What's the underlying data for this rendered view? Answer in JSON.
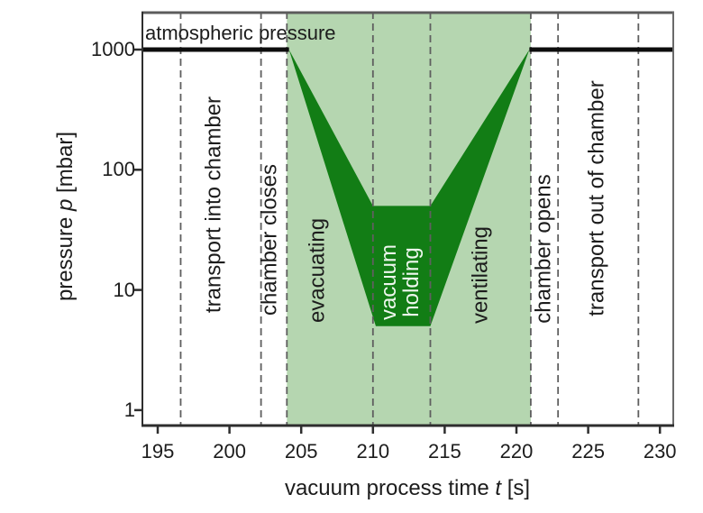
{
  "chart_data": {
    "type": "area",
    "title": "",
    "annotation": "atmospheric pressure",
    "xlabel": {
      "pre": "vacuum process time ",
      "var": "t",
      "post": " [s]"
    },
    "ylabel": {
      "pre": "pressure ",
      "var": "p",
      "post": " [mbar]"
    },
    "x_ticks": [
      195,
      200,
      205,
      210,
      215,
      220,
      225,
      230
    ],
    "y_ticks": [
      1000,
      100,
      10,
      1
    ],
    "x_range_s": [
      193.9,
      231.0
    ],
    "y_scale": "log",
    "y_log_range_mbar": [
      0.73,
      2065
    ],
    "grid": false,
    "legend": "none",
    "atmospheric_pressure_mbar": 1000,
    "baseline_segments_s": [
      [
        193.9,
        204.15
      ],
      [
        220.9,
        231.0
      ]
    ],
    "process_window": {
      "t_start_s": 204,
      "t_end_s": 221
    },
    "pressure_band": {
      "upper_mbar": [
        [
          204.15,
          1000
        ],
        [
          210,
          50
        ],
        [
          214,
          50
        ],
        [
          220.9,
          1000
        ]
      ],
      "lower_mbar": [
        [
          204.15,
          1000
        ],
        [
          210.2,
          5
        ],
        [
          214,
          5
        ],
        [
          220.9,
          1000
        ]
      ],
      "holding_pressure_range_mbar": [
        5,
        50
      ],
      "holding_time_range_s": [
        210,
        214
      ]
    },
    "phase_boundaries_s": [
      196.6,
      202.2,
      204,
      210,
      214,
      221,
      222.9,
      228.5
    ],
    "phases": [
      {
        "label": "transport into chamber",
        "t_start": 196.6,
        "t_end": 202.2,
        "label_t": 198.9,
        "label_y": 227,
        "text_color": "dark"
      },
      {
        "label": "chamber closes",
        "t_start": 202.2,
        "t_end": 204,
        "label_t": 202.8,
        "label_y": 266,
        "text_color": "dark"
      },
      {
        "label": "evacuating",
        "t_start": 204,
        "t_end": 210,
        "label_t": 206.1,
        "label_y": 300,
        "text_color": "dark"
      },
      {
        "label": "vacuum holding",
        "lines": [
          "vacuum",
          "holding"
        ],
        "t_start": 210,
        "t_end": 214,
        "label_t": 211.9,
        "label_y": 313,
        "text_color": "light"
      },
      {
        "label": "ventilating",
        "t_start": 214,
        "t_end": 221,
        "label_t": 217.5,
        "label_y": 305,
        "text_color": "dark"
      },
      {
        "label": "chamber opens",
        "t_start": 221,
        "t_end": 222.9,
        "label_t": 221.9,
        "label_y": 276,
        "text_color": "dark"
      },
      {
        "label": "transport out of chamber",
        "t_start": 222.9,
        "t_end": 228.5,
        "label_t": 225.6,
        "label_y": 220,
        "text_color": "dark"
      }
    ],
    "colors": {
      "band_dark_green": "#127d15",
      "window_light_green": "#b5d6b0",
      "dashed_line": "#5f5f5f",
      "baseline_black": "#0d0d0d",
      "axis_dark": "#2e2e2e",
      "border_gray": "#5c5c5c",
      "border_right_gray": "#6a6a6a",
      "text": "#1c1c1c",
      "band_text": "#eef7ee",
      "background": "#ffffff"
    }
  }
}
